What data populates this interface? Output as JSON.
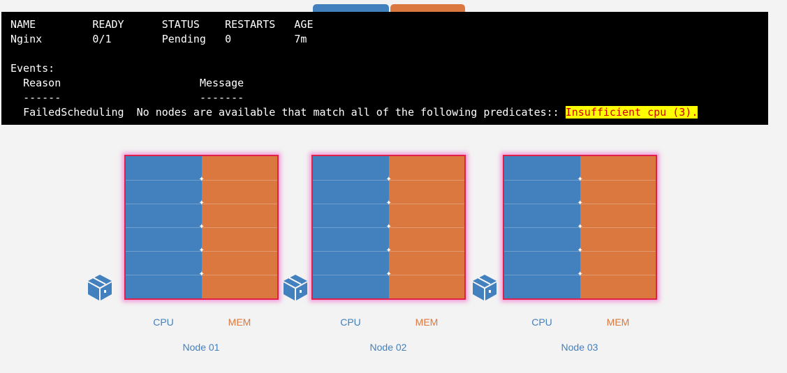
{
  "terminal": {
    "header": [
      "NAME",
      "READY",
      "STATUS",
      "RESTARTS",
      "AGE"
    ],
    "row": [
      "Nginx",
      "0/1",
      "Pending",
      "0",
      "7m"
    ],
    "events_label": "Events:",
    "reason_header": "Reason",
    "message_header": "Message",
    "reason_rule": "------",
    "message_rule": "-------",
    "reason": "FailedScheduling",
    "message": "No nodes are available that match all of the following predicates::",
    "highlight": "Insufficient cpu (3)."
  },
  "colors": {
    "cpu": "#4380be",
    "mem": "#db7840",
    "border": "#e0204a"
  },
  "nodes": [
    {
      "name": "Node 01",
      "cpu_label": "CPU",
      "mem_label": "MEM"
    },
    {
      "name": "Node 02",
      "cpu_label": "CPU",
      "mem_label": "MEM"
    },
    {
      "name": "Node 03",
      "cpu_label": "CPU",
      "mem_label": "MEM"
    }
  ]
}
